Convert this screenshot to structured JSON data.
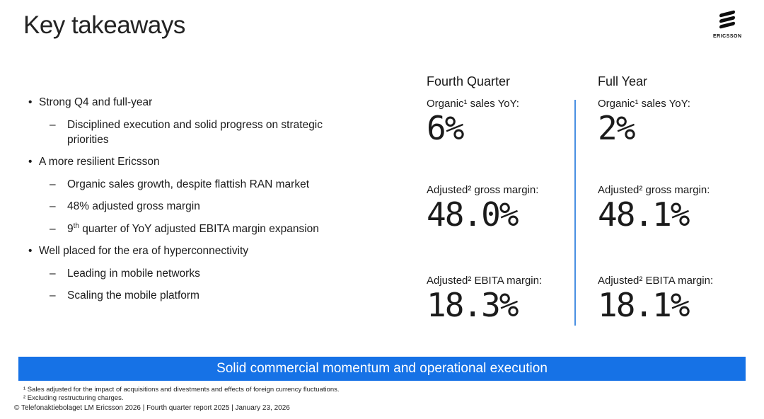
{
  "slide": {
    "title": "Key takeaways"
  },
  "logo": {
    "brand": "ERICSSON"
  },
  "markers": {
    "bullet": "•",
    "dash": "–"
  },
  "bullets": [
    {
      "level": 1,
      "text": "Strong Q4 and full-year"
    },
    {
      "level": 2,
      "text": "Disciplined execution and solid progress on strategic priorities"
    },
    {
      "level": 1,
      "text": "A more resilient Ericsson"
    },
    {
      "level": 2,
      "text": "Organic sales growth, despite flattish RAN market"
    },
    {
      "level": 2,
      "text": "48% adjusted gross margin"
    },
    {
      "level": 2,
      "num": "9",
      "sup": "th",
      "rest": " quarter of YoY adjusted EBITA margin expansion"
    },
    {
      "level": 1,
      "text": "Well placed for the era of hyperconnectivity"
    },
    {
      "level": 2,
      "text": "Leading in mobile networks"
    },
    {
      "level": 2,
      "text": "Scaling the mobile platform"
    }
  ],
  "metrics": {
    "columns": [
      {
        "header": "Fourth Quarter",
        "rows": [
          {
            "label": "Organic¹ sales YoY:",
            "value": "6%"
          },
          {
            "label": "Adjusted² gross margin:",
            "value": "48.0%"
          },
          {
            "label": "Adjusted² EBITA margin:",
            "value": "18.3%"
          }
        ]
      },
      {
        "header": "Full Year",
        "rows": [
          {
            "label": "Organic¹ sales YoY:",
            "value": "2%"
          },
          {
            "label": "Adjusted² gross margin:",
            "value": "48.1%"
          },
          {
            "label": "Adjusted² EBITA margin:",
            "value": "18.1%"
          }
        ]
      }
    ]
  },
  "banner": {
    "text": "Solid commercial momentum and operational execution"
  },
  "footnotes": [
    "¹ Sales adjusted for the impact of acquisitions and divestments and effects of foreign currency fluctuations.",
    "² Excluding restructuring charges."
  ],
  "copyright": "© Telefonaktiebolaget LM Ericsson 2026 | Fourth quarter report 2025 | January 23, 2026",
  "colors": {
    "banner_blue": "#1672e6",
    "divider_blue": "#4a90e2",
    "text": "#1b1b1b",
    "logo_black": "#0d0d0d"
  }
}
